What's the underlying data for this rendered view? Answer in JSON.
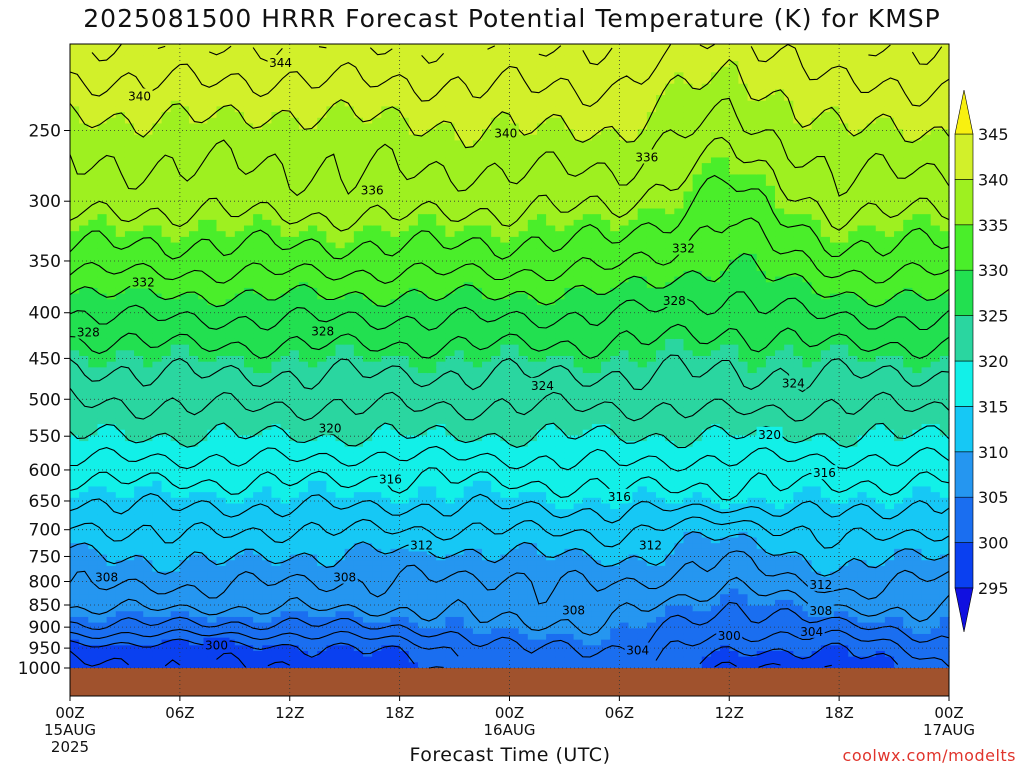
{
  "title": "2025081500 HRRR Forecast Potential Temperature (K) for KMSP",
  "credit": "coolwx.com/modelts",
  "chart_data": {
    "type": "contour",
    "title": "2025081500 HRRR Forecast Potential Temperature (K) for KMSP",
    "xlabel": "Forecast Time (UTC)",
    "ylabel": "",
    "x_range": [
      "2025-08-15 00Z",
      "2025-08-17 00Z"
    ],
    "x_ticks": [
      {
        "hour": 0,
        "label": "00Z",
        "sub": "15AUG",
        "sub2": "2025"
      },
      {
        "hour": 6,
        "label": "06Z"
      },
      {
        "hour": 12,
        "label": "12Z"
      },
      {
        "hour": 18,
        "label": "18Z"
      },
      {
        "hour": 24,
        "label": "00Z",
        "sub": "16AUG"
      },
      {
        "hour": 30,
        "label": "06Z"
      },
      {
        "hour": 36,
        "label": "12Z"
      },
      {
        "hour": 42,
        "label": "18Z"
      },
      {
        "hour": 48,
        "label": "00Z",
        "sub": "17AUG"
      }
    ],
    "y_ticks": [
      250,
      300,
      350,
      400,
      450,
      500,
      550,
      600,
      650,
      700,
      750,
      800,
      850,
      900,
      950,
      1000
    ],
    "y_scale": "log-pressure, inverted",
    "grid": "dotted",
    "colorbar": {
      "levels": [
        295,
        300,
        305,
        310,
        315,
        320,
        325,
        330,
        335,
        340,
        345
      ],
      "colors": [
        "#1010e0",
        "#0a40f0",
        "#1a6ef0",
        "#2596f0",
        "#16c8f5",
        "#12f0e8",
        "#2ad6a0",
        "#22e050",
        "#4aee2a",
        "#9ef020",
        "#d2f02a",
        "#f8f010"
      ],
      "extends": "both"
    },
    "profiles": [
      {
        "hour": 0,
        "theta": [
          [
            1000,
            297.5
          ],
          [
            950,
            299
          ],
          [
            900,
            303.5
          ],
          [
            850,
            306.5
          ],
          [
            800,
            308.5
          ],
          [
            750,
            309.5
          ],
          [
            700,
            311.5
          ],
          [
            650,
            314
          ],
          [
            600,
            317
          ],
          [
            550,
            320
          ],
          [
            500,
            322
          ],
          [
            450,
            324.5
          ],
          [
            400,
            328
          ],
          [
            350,
            333
          ],
          [
            300,
            337
          ],
          [
            250,
            339
          ],
          [
            200,
            344
          ]
        ]
      },
      {
        "hour": 6,
        "theta": [
          [
            1000,
            298
          ],
          [
            950,
            299
          ],
          [
            900,
            303.5
          ],
          [
            850,
            306.5
          ],
          [
            800,
            308.5
          ],
          [
            750,
            310.5
          ],
          [
            700,
            312.5
          ],
          [
            650,
            314.5
          ],
          [
            600,
            317
          ],
          [
            550,
            320
          ],
          [
            500,
            322.5
          ],
          [
            450,
            325
          ],
          [
            400,
            328.5
          ],
          [
            350,
            333
          ],
          [
            300,
            336.5
          ],
          [
            250,
            339.5
          ],
          [
            200,
            344
          ]
        ]
      },
      {
        "hour": 12,
        "theta": [
          [
            1000,
            298
          ],
          [
            950,
            299.5
          ],
          [
            900,
            303.5
          ],
          [
            850,
            306.5
          ],
          [
            800,
            308
          ],
          [
            750,
            310
          ],
          [
            700,
            312
          ],
          [
            650,
            314.5
          ],
          [
            600,
            317
          ],
          [
            550,
            320
          ],
          [
            500,
            322.5
          ],
          [
            450,
            325
          ],
          [
            400,
            328.5
          ],
          [
            350,
            333
          ],
          [
            300,
            337
          ],
          [
            250,
            339
          ],
          [
            200,
            344
          ]
        ]
      },
      {
        "hour": 18,
        "theta": [
          [
            1000,
            299
          ],
          [
            950,
            300.5
          ],
          [
            900,
            304
          ],
          [
            850,
            306.5
          ],
          [
            800,
            308
          ],
          [
            750,
            309.5
          ],
          [
            700,
            312
          ],
          [
            650,
            314.5
          ],
          [
            600,
            316.5
          ],
          [
            550,
            320
          ],
          [
            500,
            322.5
          ],
          [
            450,
            325
          ],
          [
            400,
            328.5
          ],
          [
            350,
            333
          ],
          [
            300,
            337
          ],
          [
            250,
            339.5
          ],
          [
            200,
            344
          ]
        ]
      },
      {
        "hour": 24,
        "theta": [
          [
            1000,
            303
          ],
          [
            950,
            304
          ],
          [
            900,
            306
          ],
          [
            850,
            307
          ],
          [
            800,
            307.5
          ],
          [
            750,
            309.5
          ],
          [
            700,
            312
          ],
          [
            650,
            314.5
          ],
          [
            600,
            317
          ],
          [
            550,
            320
          ],
          [
            500,
            322.5
          ],
          [
            450,
            325
          ],
          [
            400,
            328.5
          ],
          [
            350,
            333
          ],
          [
            300,
            336.5
          ],
          [
            250,
            340
          ],
          [
            200,
            344
          ]
        ]
      },
      {
        "hour": 30,
        "theta": [
          [
            1000,
            303
          ],
          [
            950,
            304
          ],
          [
            900,
            305.5
          ],
          [
            850,
            307
          ],
          [
            800,
            308.5
          ],
          [
            750,
            310.5
          ],
          [
            700,
            312.5
          ],
          [
            650,
            315
          ],
          [
            600,
            317.5
          ],
          [
            550,
            320
          ],
          [
            500,
            322.5
          ],
          [
            450,
            325
          ],
          [
            400,
            328
          ],
          [
            350,
            332.5
          ],
          [
            300,
            336.5
          ],
          [
            250,
            340
          ],
          [
            200,
            344
          ]
        ]
      },
      {
        "hour": 36,
        "theta": [
          [
            1000,
            298
          ],
          [
            950,
            300.5
          ],
          [
            900,
            302.5
          ],
          [
            850,
            304
          ],
          [
            800,
            306.5
          ],
          [
            750,
            308
          ],
          [
            700,
            310.5
          ],
          [
            650,
            315
          ],
          [
            600,
            317
          ],
          [
            550,
            320
          ],
          [
            500,
            323
          ],
          [
            450,
            324.5
          ],
          [
            400,
            327
          ],
          [
            350,
            330
          ],
          [
            300,
            333
          ],
          [
            250,
            337
          ],
          [
            200,
            341
          ]
        ]
      },
      {
        "hour": 42,
        "theta": [
          [
            1000,
            298
          ],
          [
            950,
            300
          ],
          [
            900,
            303.5
          ],
          [
            850,
            306.5
          ],
          [
            800,
            309
          ],
          [
            750,
            311
          ],
          [
            700,
            313
          ],
          [
            650,
            315
          ],
          [
            600,
            317
          ],
          [
            550,
            320
          ],
          [
            500,
            322.5
          ],
          [
            450,
            325
          ],
          [
            400,
            328.5
          ],
          [
            350,
            333
          ],
          [
            300,
            337
          ],
          [
            250,
            340
          ],
          [
            200,
            344
          ]
        ]
      },
      {
        "hour": 48,
        "theta": [
          [
            1000,
            302
          ],
          [
            950,
            303.5
          ],
          [
            900,
            305
          ],
          [
            850,
            306.5
          ],
          [
            800,
            307.5
          ],
          [
            750,
            309.5
          ],
          [
            700,
            312
          ],
          [
            650,
            314
          ],
          [
            600,
            317
          ],
          [
            550,
            320
          ],
          [
            500,
            322.5
          ],
          [
            450,
            325
          ],
          [
            400,
            328.5
          ],
          [
            350,
            333
          ],
          [
            300,
            336.5
          ],
          [
            250,
            340
          ],
          [
            200,
            344
          ]
        ]
      }
    ],
    "contour_labels": [
      {
        "value": "344",
        "hour": 11.5,
        "p": 210
      },
      {
        "value": "340",
        "hour": 3.8,
        "p": 229
      },
      {
        "value": "340",
        "hour": 23.8,
        "p": 252
      },
      {
        "value": "336",
        "hour": 16.5,
        "p": 292
      },
      {
        "value": "336",
        "hour": 31.5,
        "p": 268
      },
      {
        "value": "332",
        "hour": 4,
        "p": 370
      },
      {
        "value": "332",
        "hour": 33.5,
        "p": 339
      },
      {
        "value": "328",
        "hour": 1,
        "p": 421
      },
      {
        "value": "328",
        "hour": 13.8,
        "p": 420
      },
      {
        "value": "328",
        "hour": 33,
        "p": 388
      },
      {
        "value": "324",
        "hour": 25.8,
        "p": 483
      },
      {
        "value": "324",
        "hour": 39.5,
        "p": 480
      },
      {
        "value": "320",
        "hour": 14.2,
        "p": 539
      },
      {
        "value": "320",
        "hour": 38.2,
        "p": 548
      },
      {
        "value": "316",
        "hour": 17.5,
        "p": 615
      },
      {
        "value": "316",
        "hour": 30,
        "p": 643
      },
      {
        "value": "316",
        "hour": 41.2,
        "p": 605
      },
      {
        "value": "312",
        "hour": 19.2,
        "p": 729
      },
      {
        "value": "312",
        "hour": 31.7,
        "p": 729
      },
      {
        "value": "312",
        "hour": 41,
        "p": 807
      },
      {
        "value": "308",
        "hour": 2,
        "p": 792
      },
      {
        "value": "308",
        "hour": 15,
        "p": 792
      },
      {
        "value": "308",
        "hour": 27.5,
        "p": 862
      },
      {
        "value": "308",
        "hour": 41,
        "p": 863
      },
      {
        "value": "304",
        "hour": 31,
        "p": 956
      },
      {
        "value": "304",
        "hour": 40.5,
        "p": 911
      },
      {
        "value": "300",
        "hour": 8,
        "p": 944
      },
      {
        "value": "300",
        "hour": 36,
        "p": 921
      }
    ]
  }
}
